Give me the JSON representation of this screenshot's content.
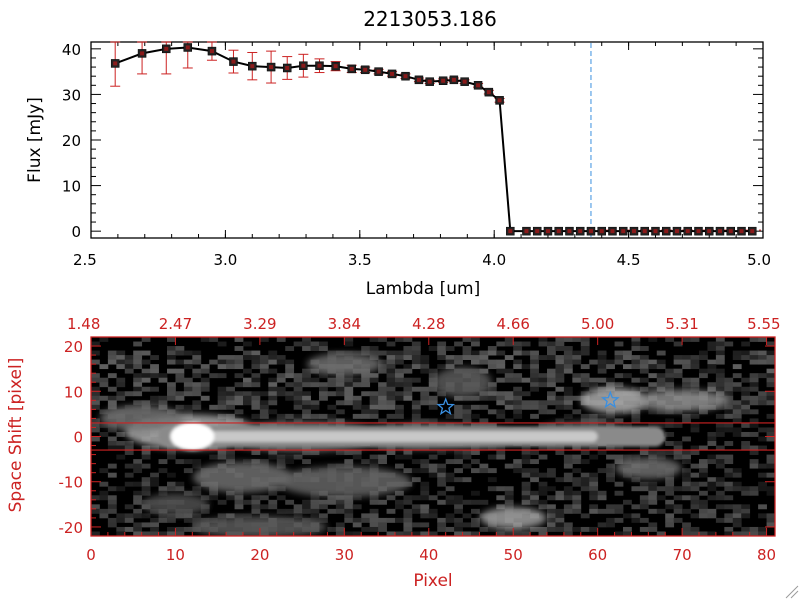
{
  "chart_data": [
    {
      "type": "line",
      "title": "2213053.186",
      "xlabel": "Lambda [um]",
      "ylabel": "Flux [mJy]",
      "xlim": [
        2.5,
        5.0
      ],
      "ylim": [
        -1.5,
        41.5
      ],
      "x_ticks": [
        "2.5",
        "3.0",
        "3.5",
        "4.0",
        "4.5",
        "5.0"
      ],
      "y_ticks": [
        "0",
        "10",
        "20",
        "30",
        "40"
      ],
      "vline_x": 4.36,
      "series": [
        {
          "name": "flux",
          "x": [
            2.59,
            2.69,
            2.78,
            2.86,
            2.95,
            3.03,
            3.1,
            3.17,
            3.23,
            3.29,
            3.35,
            3.41,
            3.47,
            3.52,
            3.57,
            3.62,
            3.67,
            3.72,
            3.76,
            3.81,
            3.85,
            3.89,
            3.94,
            3.98,
            4.02,
            4.06,
            4.12,
            4.16,
            4.2,
            4.24,
            4.28,
            4.32,
            4.36,
            4.4,
            4.44,
            4.48,
            4.52,
            4.56,
            4.6,
            4.64,
            4.68,
            4.72,
            4.76,
            4.8,
            4.84,
            4.88,
            4.92,
            4.96
          ],
          "values": [
            36.8,
            39.0,
            40.0,
            40.3,
            39.5,
            37.2,
            36.2,
            36.0,
            35.8,
            36.3,
            36.3,
            36.2,
            35.6,
            35.4,
            35.0,
            34.5,
            34.0,
            33.2,
            32.8,
            33.0,
            33.2,
            32.8,
            32.0,
            30.5,
            28.7,
            0,
            0,
            0,
            0,
            0,
            0,
            0,
            0,
            0,
            0,
            0,
            0,
            0,
            0,
            0,
            0,
            0,
            0,
            0,
            0,
            0,
            0,
            0
          ],
          "errors": [
            5.0,
            4.5,
            5.5,
            4.5,
            2.0,
            2.5,
            3.0,
            3.5,
            2.5,
            2.5,
            1.5,
            1.0,
            0.8,
            0.6,
            0.5,
            0.5,
            0.5,
            0.4,
            0.4,
            0.4,
            0.4,
            0.4,
            0.4,
            0.4,
            0.4,
            0,
            0,
            0,
            0,
            0,
            0,
            0,
            0,
            0,
            0,
            0,
            0,
            0,
            0,
            0,
            0,
            0,
            0,
            0,
            0,
            0,
            0,
            0
          ]
        }
      ]
    },
    {
      "type": "heatmap",
      "xlabel": "Pixel",
      "ylabel": "Space Shift [pixel]",
      "xlim": [
        0,
        81
      ],
      "ylim": [
        -22,
        22
      ],
      "x_ticks": [
        "0",
        "10",
        "20",
        "30",
        "40",
        "50",
        "60",
        "70",
        "80"
      ],
      "y_ticks": [
        "-20",
        "-10",
        "0",
        "10",
        "20"
      ],
      "top_ticks": [
        "1.48",
        "2.47",
        "3.29",
        "3.84",
        "4.28",
        "4.66",
        "5.00",
        "5.31",
        "5.55"
      ],
      "hlines_y": [
        3,
        -3
      ],
      "stars": [
        {
          "x": 42,
          "y": 6.5
        },
        {
          "x": 61.5,
          "y": 8
        }
      ],
      "colors": {
        "axis": "#cc2222",
        "star": "#3a8fe0",
        "trace": "#cc2222"
      }
    }
  ]
}
